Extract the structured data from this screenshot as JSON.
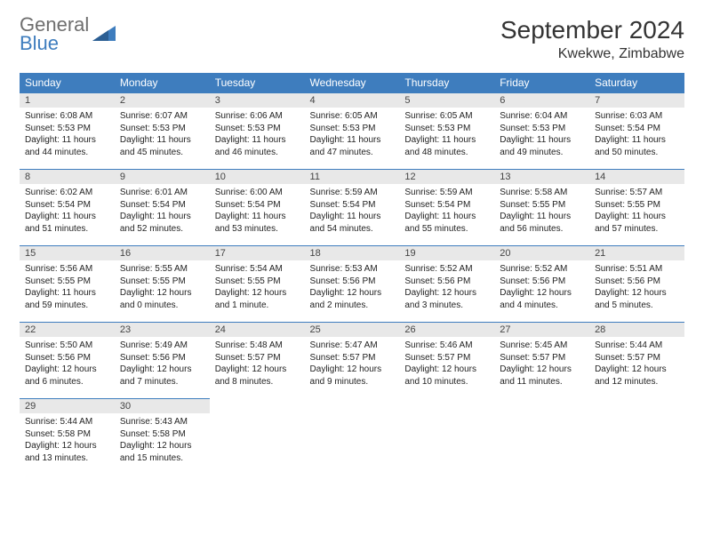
{
  "brand": {
    "word1": "General",
    "word2": "Blue"
  },
  "title": "September 2024",
  "location": "Kwekwe, Zimbabwe",
  "colors": {
    "header_bg": "#3E7DBE",
    "header_text": "#ffffff",
    "daynum_bg": "#e8e8e8",
    "border": "#3E7DBE",
    "body_text": "#222222",
    "logo_gray": "#6e6e6e",
    "logo_blue": "#3E7DBE"
  },
  "weekdays": [
    "Sunday",
    "Monday",
    "Tuesday",
    "Wednesday",
    "Thursday",
    "Friday",
    "Saturday"
  ],
  "days": [
    {
      "n": "1",
      "sunrise": "Sunrise: 6:08 AM",
      "sunset": "Sunset: 5:53 PM",
      "day": "Daylight: 11 hours and 44 minutes."
    },
    {
      "n": "2",
      "sunrise": "Sunrise: 6:07 AM",
      "sunset": "Sunset: 5:53 PM",
      "day": "Daylight: 11 hours and 45 minutes."
    },
    {
      "n": "3",
      "sunrise": "Sunrise: 6:06 AM",
      "sunset": "Sunset: 5:53 PM",
      "day": "Daylight: 11 hours and 46 minutes."
    },
    {
      "n": "4",
      "sunrise": "Sunrise: 6:05 AM",
      "sunset": "Sunset: 5:53 PM",
      "day": "Daylight: 11 hours and 47 minutes."
    },
    {
      "n": "5",
      "sunrise": "Sunrise: 6:05 AM",
      "sunset": "Sunset: 5:53 PM",
      "day": "Daylight: 11 hours and 48 minutes."
    },
    {
      "n": "6",
      "sunrise": "Sunrise: 6:04 AM",
      "sunset": "Sunset: 5:53 PM",
      "day": "Daylight: 11 hours and 49 minutes."
    },
    {
      "n": "7",
      "sunrise": "Sunrise: 6:03 AM",
      "sunset": "Sunset: 5:54 PM",
      "day": "Daylight: 11 hours and 50 minutes."
    },
    {
      "n": "8",
      "sunrise": "Sunrise: 6:02 AM",
      "sunset": "Sunset: 5:54 PM",
      "day": "Daylight: 11 hours and 51 minutes."
    },
    {
      "n": "9",
      "sunrise": "Sunrise: 6:01 AM",
      "sunset": "Sunset: 5:54 PM",
      "day": "Daylight: 11 hours and 52 minutes."
    },
    {
      "n": "10",
      "sunrise": "Sunrise: 6:00 AM",
      "sunset": "Sunset: 5:54 PM",
      "day": "Daylight: 11 hours and 53 minutes."
    },
    {
      "n": "11",
      "sunrise": "Sunrise: 5:59 AM",
      "sunset": "Sunset: 5:54 PM",
      "day": "Daylight: 11 hours and 54 minutes."
    },
    {
      "n": "12",
      "sunrise": "Sunrise: 5:59 AM",
      "sunset": "Sunset: 5:54 PM",
      "day": "Daylight: 11 hours and 55 minutes."
    },
    {
      "n": "13",
      "sunrise": "Sunrise: 5:58 AM",
      "sunset": "Sunset: 5:55 PM",
      "day": "Daylight: 11 hours and 56 minutes."
    },
    {
      "n": "14",
      "sunrise": "Sunrise: 5:57 AM",
      "sunset": "Sunset: 5:55 PM",
      "day": "Daylight: 11 hours and 57 minutes."
    },
    {
      "n": "15",
      "sunrise": "Sunrise: 5:56 AM",
      "sunset": "Sunset: 5:55 PM",
      "day": "Daylight: 11 hours and 59 minutes."
    },
    {
      "n": "16",
      "sunrise": "Sunrise: 5:55 AM",
      "sunset": "Sunset: 5:55 PM",
      "day": "Daylight: 12 hours and 0 minutes."
    },
    {
      "n": "17",
      "sunrise": "Sunrise: 5:54 AM",
      "sunset": "Sunset: 5:55 PM",
      "day": "Daylight: 12 hours and 1 minute."
    },
    {
      "n": "18",
      "sunrise": "Sunrise: 5:53 AM",
      "sunset": "Sunset: 5:56 PM",
      "day": "Daylight: 12 hours and 2 minutes."
    },
    {
      "n": "19",
      "sunrise": "Sunrise: 5:52 AM",
      "sunset": "Sunset: 5:56 PM",
      "day": "Daylight: 12 hours and 3 minutes."
    },
    {
      "n": "20",
      "sunrise": "Sunrise: 5:52 AM",
      "sunset": "Sunset: 5:56 PM",
      "day": "Daylight: 12 hours and 4 minutes."
    },
    {
      "n": "21",
      "sunrise": "Sunrise: 5:51 AM",
      "sunset": "Sunset: 5:56 PM",
      "day": "Daylight: 12 hours and 5 minutes."
    },
    {
      "n": "22",
      "sunrise": "Sunrise: 5:50 AM",
      "sunset": "Sunset: 5:56 PM",
      "day": "Daylight: 12 hours and 6 minutes."
    },
    {
      "n": "23",
      "sunrise": "Sunrise: 5:49 AM",
      "sunset": "Sunset: 5:56 PM",
      "day": "Daylight: 12 hours and 7 minutes."
    },
    {
      "n": "24",
      "sunrise": "Sunrise: 5:48 AM",
      "sunset": "Sunset: 5:57 PM",
      "day": "Daylight: 12 hours and 8 minutes."
    },
    {
      "n": "25",
      "sunrise": "Sunrise: 5:47 AM",
      "sunset": "Sunset: 5:57 PM",
      "day": "Daylight: 12 hours and 9 minutes."
    },
    {
      "n": "26",
      "sunrise": "Sunrise: 5:46 AM",
      "sunset": "Sunset: 5:57 PM",
      "day": "Daylight: 12 hours and 10 minutes."
    },
    {
      "n": "27",
      "sunrise": "Sunrise: 5:45 AM",
      "sunset": "Sunset: 5:57 PM",
      "day": "Daylight: 12 hours and 11 minutes."
    },
    {
      "n": "28",
      "sunrise": "Sunrise: 5:44 AM",
      "sunset": "Sunset: 5:57 PM",
      "day": "Daylight: 12 hours and 12 minutes."
    },
    {
      "n": "29",
      "sunrise": "Sunrise: 5:44 AM",
      "sunset": "Sunset: 5:58 PM",
      "day": "Daylight: 12 hours and 13 minutes."
    },
    {
      "n": "30",
      "sunrise": "Sunrise: 5:43 AM",
      "sunset": "Sunset: 5:58 PM",
      "day": "Daylight: 12 hours and 15 minutes."
    }
  ],
  "start_weekday_index": 0,
  "typography": {
    "title_fontsize": 28,
    "location_fontsize": 16,
    "header_fontsize": 12,
    "cell_fontsize": 10
  }
}
